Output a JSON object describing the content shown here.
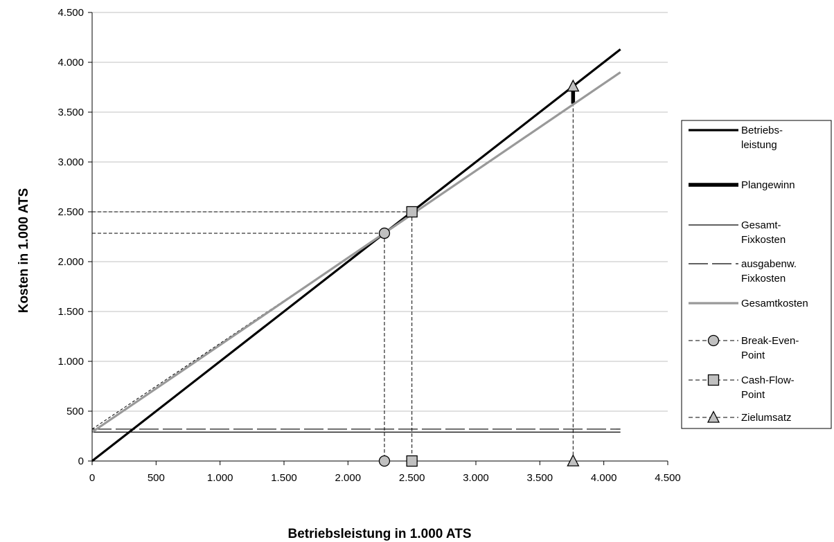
{
  "chart_data": {
    "type": "line",
    "title": "",
    "xlabel": "Betriebsleistung in 1.000 ATS",
    "ylabel": "Kosten in 1.000 ATS",
    "xlim": [
      0,
      4500
    ],
    "ylim": [
      0,
      4500
    ],
    "x_ticks": [
      0,
      500,
      1000,
      1500,
      2000,
      2500,
      3000,
      3500,
      4000,
      4500
    ],
    "x_tick_labels": [
      "0",
      "500",
      "1.000",
      "1.500",
      "2.000",
      "2.500",
      "3.000",
      "3.500",
      "4.000",
      "4.500"
    ],
    "y_ticks": [
      0,
      500,
      1000,
      1500,
      2000,
      2500,
      3000,
      3500,
      4000,
      4500
    ],
    "y_tick_labels": [
      "0",
      "500",
      "1.000",
      "1.500",
      "2.000",
      "2.500",
      "3.000",
      "3.500",
      "4.000",
      "4.500"
    ],
    "grid": "horizontal",
    "legend_position": "right",
    "series": [
      {
        "name": "Betriebs-\nleistung",
        "style": "solid",
        "color": "#000000",
        "points": [
          [
            0,
            0
          ],
          [
            4130,
            4130
          ]
        ]
      },
      {
        "name": "Plangewinn",
        "style": "solid-thick",
        "color": "#000000",
        "points": [
          [
            3760,
            3585
          ],
          [
            3760,
            3760
          ]
        ]
      },
      {
        "name": "Gesamt-\nFixkosten",
        "style": "thin",
        "color": "#000000",
        "points": [
          [
            0,
            290
          ],
          [
            4130,
            290
          ]
        ]
      },
      {
        "name": "ausgabenw.\nFixkosten",
        "style": "long-dash",
        "color": "#000000",
        "points": [
          [
            0,
            320
          ],
          [
            4130,
            320
          ]
        ]
      },
      {
        "name": "Gesamtkosten",
        "style": "solid",
        "color": "#999999",
        "points": [
          [
            0,
            290
          ],
          [
            4130,
            3900
          ]
        ]
      },
      {
        "name": "Break-Even-\nPoint",
        "style": "dashed-marker",
        "marker": "circle",
        "color": "#000000",
        "points": [
          [
            2285,
            2285
          ]
        ],
        "axis_marker": [
          2285,
          0
        ]
      },
      {
        "name": "Cash-Flow-\nPoint",
        "style": "dashed-marker",
        "marker": "square",
        "color": "#000000",
        "points": [
          [
            2500,
            2500
          ]
        ],
        "axis_marker": [
          2500,
          0
        ]
      },
      {
        "name": "Zielumsatz",
        "style": "dashed-marker",
        "marker": "triangle",
        "color": "#000000",
        "points": [
          [
            3760,
            3760
          ]
        ],
        "axis_marker": [
          3760,
          0
        ]
      }
    ],
    "extra_lines": [
      {
        "style": "thin-dashed",
        "points": [
          [
            0,
            320
          ],
          [
            2285,
            2285
          ]
        ]
      }
    ]
  },
  "colors": {
    "marker_fill": "#c0c0c0",
    "gray_line": "#999999",
    "grid": "#c0c0c0"
  }
}
